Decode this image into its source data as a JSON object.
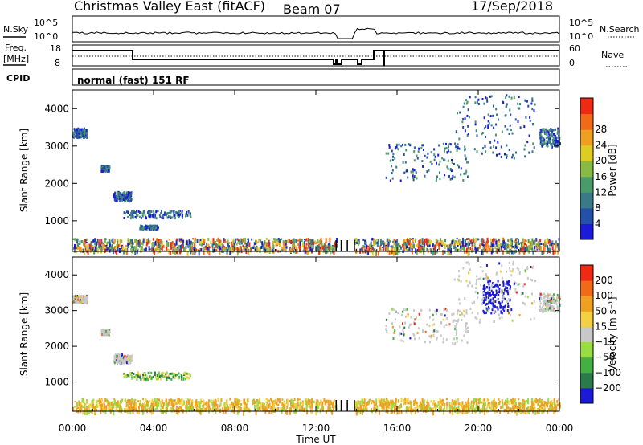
{
  "header": {
    "title": "Christmas Valley East (fitACF)",
    "beam": "Beam 07",
    "date": "17/Sep/2018"
  },
  "status_panels": {
    "nsky_label": "N.Sky",
    "nsky_ticks": [
      "10^5",
      "10^0"
    ],
    "nsearch_label": "N.Search",
    "nsearch_ticks": [
      "10^5",
      "10^0"
    ],
    "freq_label": "Freq.",
    "freq_unit": "[MHz]",
    "freq_ticks": [
      "18",
      "8"
    ],
    "nave_label": "Nave",
    "nave_ticks": [
      "60",
      "0"
    ],
    "cpid_label": "CPID",
    "cpid_value": "normal (fast) 151 RF"
  },
  "colors": {
    "power_scale": [
      "#1a1ad8",
      "#2550a8",
      "#3a7a88",
      "#4a9a6a",
      "#88bb44",
      "#ddcc22",
      "#f0a020",
      "#f06a18",
      "#ee2a14"
    ],
    "velocity_scale": [
      "#1a1ad8",
      "#2a7a4a",
      "#44b044",
      "#99dd44",
      "#c8c8c8",
      "#f5d040",
      "#f0a020",
      "#f06a18",
      "#ee2a14"
    ]
  },
  "chart_data": [
    {
      "type": "heatmap",
      "name": "power",
      "x": {
        "range": [
          0,
          24
        ],
        "ticks": [
          "00:00",
          "04:00",
          "08:00",
          "12:00",
          "16:00",
          "20:00",
          "00:00"
        ],
        "label": "Time UT"
      },
      "y": {
        "range": [
          180,
          4500
        ],
        "ticks": [
          "1000",
          "2000",
          "3000",
          "4000"
        ],
        "label": "Slant Range [km]"
      },
      "colorbar": {
        "label": "Power [dB]",
        "ticks": [
          "4",
          "8",
          "12",
          "16",
          "20",
          "24",
          "28"
        ]
      },
      "data_gap_hours": [
        13.0,
        13.9
      ],
      "scatter_regions": [
        {
          "t": [
            0.0,
            0.7
          ],
          "r": [
            3250,
            3500
          ]
        },
        {
          "t": [
            1.4,
            1.8
          ],
          "r": [
            2350,
            2500
          ]
        },
        {
          "t": [
            2.0,
            2.9
          ],
          "r": [
            1550,
            1800
          ]
        },
        {
          "t": [
            2.5,
            5.8
          ],
          "r": [
            1100,
            1300
          ]
        },
        {
          "t": [
            3.3,
            4.2
          ],
          "r": [
            800,
            900
          ]
        },
        {
          "t": [
            15.4,
            19.5
          ],
          "r": [
            2100,
            3100
          ]
        },
        {
          "t": [
            18.8,
            22.8
          ],
          "r": [
            2700,
            4400
          ]
        },
        {
          "t": [
            23.0,
            24.0
          ],
          "r": [
            3000,
            3500
          ]
        },
        {
          "t": [
            0.0,
            24.0
          ],
          "r": [
            200,
            550
          ]
        }
      ]
    },
    {
      "type": "heatmap",
      "name": "velocity",
      "x": {
        "range": [
          0,
          24
        ],
        "ticks": [
          "00:00",
          "04:00",
          "08:00",
          "12:00",
          "16:00",
          "20:00",
          "00:00"
        ],
        "label": "Time UT"
      },
      "y": {
        "range": [
          180,
          4500
        ],
        "ticks": [
          "1000",
          "2000",
          "3000",
          "4000"
        ],
        "label": "Slant Range [km]"
      },
      "colorbar": {
        "label": "Velocity [m s⁻¹]",
        "ticks": [
          "200",
          "100",
          "50",
          "15",
          "−15",
          "−50",
          "−100",
          "−200"
        ]
      },
      "data_gap_hours": [
        13.0,
        13.9
      ],
      "scatter_regions": [
        {
          "t": [
            0.0,
            0.7
          ],
          "r": [
            3250,
            3450
          ]
        },
        {
          "t": [
            1.4,
            1.8
          ],
          "r": [
            2350,
            2500
          ]
        },
        {
          "t": [
            2.0,
            2.9
          ],
          "r": [
            1550,
            1800
          ]
        },
        {
          "t": [
            2.5,
            5.8
          ],
          "r": [
            1100,
            1300
          ]
        },
        {
          "t": [
            15.4,
            19.5
          ],
          "r": [
            2100,
            3100
          ]
        },
        {
          "t": [
            20.2,
            21.6
          ],
          "r": [
            2950,
            3900
          ]
        },
        {
          "t": [
            18.8,
            22.8
          ],
          "r": [
            2700,
            4400
          ]
        },
        {
          "t": [
            23.0,
            24.0
          ],
          "r": [
            3000,
            3500
          ]
        },
        {
          "t": [
            0.0,
            24.0
          ],
          "r": [
            200,
            550
          ]
        }
      ]
    }
  ]
}
